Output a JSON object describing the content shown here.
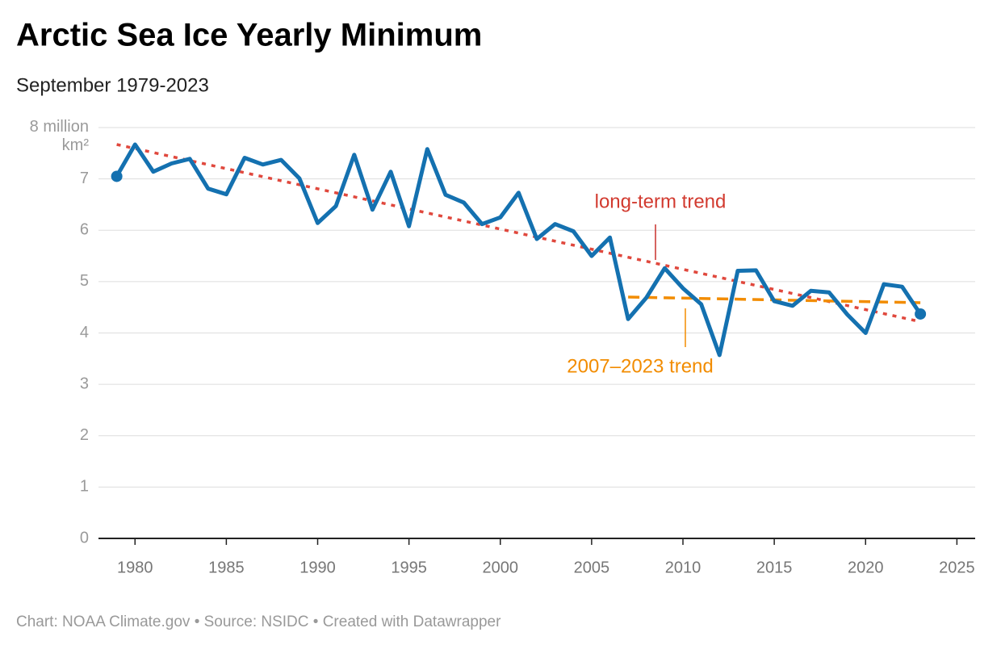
{
  "chart_data": {
    "type": "line",
    "title": "Arctic Sea Ice Yearly Minimum",
    "subtitle": "September 1979-2023",
    "footer": "Chart: NOAA Climate.gov • Source: NSIDC • Created with Datawrapper",
    "x": [
      1979,
      1980,
      1981,
      1982,
      1983,
      1984,
      1985,
      1986,
      1987,
      1988,
      1989,
      1990,
      1991,
      1992,
      1993,
      1994,
      1995,
      1996,
      1997,
      1998,
      1999,
      2000,
      2001,
      2002,
      2003,
      2004,
      2005,
      2006,
      2007,
      2008,
      2009,
      2010,
      2011,
      2012,
      2013,
      2014,
      2015,
      2016,
      2017,
      2018,
      2019,
      2020,
      2021,
      2022,
      2023
    ],
    "series": [
      {
        "color": "#1471b0",
        "values": [
          7.05,
          7.67,
          7.14,
          7.3,
          7.39,
          6.81,
          6.7,
          7.41,
          7.28,
          7.37,
          7.01,
          6.14,
          6.47,
          7.47,
          6.4,
          7.14,
          6.08,
          7.58,
          6.69,
          6.54,
          6.12,
          6.25,
          6.73,
          5.83,
          6.12,
          5.98,
          5.5,
          5.86,
          4.27,
          4.69,
          5.26,
          4.87,
          4.56,
          3.57,
          5.21,
          5.22,
          4.62,
          4.53,
          4.82,
          4.79,
          4.36,
          4.0,
          4.95,
          4.9,
          4.37
        ]
      },
      {
        "name": "long-term trend",
        "color": "#e0483d",
        "x": [
          1979,
          2023
        ],
        "values": [
          7.67,
          4.22
        ]
      },
      {
        "name": "2007–2023 trend",
        "color": "#f28c00",
        "x": [
          2007,
          2023
        ],
        "values": [
          4.7,
          4.59
        ]
      }
    ],
    "xlim": [
      1978,
      2026
    ],
    "xticks": [
      1980,
      1985,
      1990,
      1995,
      2000,
      2005,
      2010,
      2015,
      2020,
      2025
    ],
    "ylim": [
      0,
      8
    ],
    "yticks": [
      0,
      1,
      2,
      3,
      4,
      5,
      6,
      7,
      {
        "value": 8,
        "label": "8 million km²"
      }
    ],
    "grid": true
  }
}
